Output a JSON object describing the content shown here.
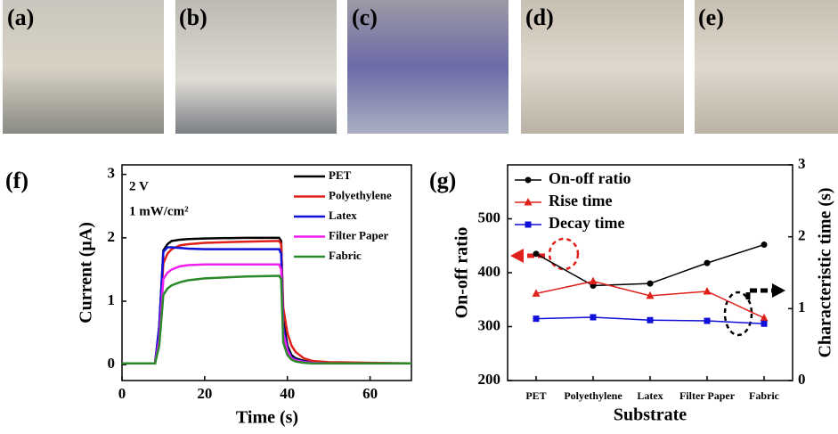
{
  "panels": [
    {
      "label": "(a)"
    },
    {
      "label": "(b)"
    },
    {
      "label": "(c)"
    },
    {
      "label": "(d)"
    },
    {
      "label": "(e)"
    }
  ],
  "chart_data": [
    {
      "type": "line",
      "panel_label": "(f)",
      "xlabel": "Time (s)",
      "ylabel": "Current (μA)",
      "annotations": [
        "2 V",
        "1 mW/cm²"
      ],
      "x": [
        0,
        8,
        9,
        10,
        11,
        12,
        14,
        16,
        20,
        30,
        38,
        38.5,
        39,
        40,
        41,
        42,
        44,
        46,
        50,
        60,
        70
      ],
      "xlim": [
        0,
        70
      ],
      "xticks": [
        0,
        20,
        40,
        60
      ],
      "ylim": [
        -0.25,
        3.15
      ],
      "yticks": [
        0,
        1,
        2,
        3
      ],
      "series": [
        {
          "name": "PET",
          "color": "#000000",
          "values": [
            0.02,
            0.02,
            0.6,
            1.8,
            1.9,
            1.95,
            1.97,
            1.98,
            1.99,
            2.0,
            2.0,
            1.95,
            0.7,
            0.3,
            0.15,
            0.1,
            0.06,
            0.04,
            0.03,
            0.02,
            0.02
          ]
        },
        {
          "name": "Polyethylene",
          "color": "#e0201b",
          "values": [
            0.02,
            0.02,
            0.5,
            1.6,
            1.75,
            1.82,
            1.88,
            1.9,
            1.92,
            1.94,
            1.95,
            1.9,
            0.9,
            0.5,
            0.3,
            0.2,
            0.1,
            0.06,
            0.04,
            0.03,
            0.02
          ]
        },
        {
          "name": "Latex",
          "color": "#1010d8",
          "values": [
            0.02,
            0.02,
            0.6,
            1.78,
            1.85,
            1.85,
            1.84,
            1.83,
            1.82,
            1.82,
            1.82,
            1.75,
            0.6,
            0.25,
            0.12,
            0.08,
            0.05,
            0.03,
            0.02,
            0.02,
            0.02
          ]
        },
        {
          "name": "Filter Paper",
          "color": "#f020f0",
          "values": [
            0.02,
            0.02,
            0.4,
            1.35,
            1.45,
            1.5,
            1.55,
            1.57,
            1.58,
            1.58,
            1.58,
            1.5,
            0.5,
            0.22,
            0.1,
            0.07,
            0.04,
            0.03,
            0.02,
            0.02,
            0.02
          ]
        },
        {
          "name": "Fabric",
          "color": "#2a8a2a",
          "values": [
            0.02,
            0.02,
            0.3,
            1.1,
            1.2,
            1.25,
            1.3,
            1.33,
            1.36,
            1.39,
            1.4,
            1.35,
            0.35,
            0.15,
            0.08,
            0.05,
            0.03,
            0.02,
            0.02,
            0.02,
            0.02
          ]
        }
      ]
    },
    {
      "type": "line",
      "panel_label": "(g)",
      "xlabel": "Substrate",
      "ylabel": "On-off ratio",
      "y2label": "Characteristic time (s)",
      "categories": [
        "PET",
        "Polyethylene",
        "Latex",
        "Filter Paper",
        "Fabric"
      ],
      "ylim": [
        200,
        600
      ],
      "yticks": [
        200,
        300,
        400,
        500
      ],
      "y2lim": [
        0,
        3
      ],
      "y2ticks": [
        0,
        1,
        2,
        3
      ],
      "series": [
        {
          "name": "On-off ratio",
          "color": "#000000",
          "marker": "circle",
          "values": [
            435,
            376,
            380,
            418,
            452
          ]
        },
        {
          "name": "Rise time",
          "color": "#e0201b",
          "marker": "triangle",
          "axis": "y2",
          "values": [
            1.21,
            1.38,
            1.18,
            1.24,
            0.87
          ]
        },
        {
          "name": "Decay time",
          "color": "#1010d8",
          "marker": "square",
          "axis": "y2",
          "values": [
            0.86,
            0.88,
            0.84,
            0.83,
            0.79
          ]
        }
      ]
    }
  ]
}
